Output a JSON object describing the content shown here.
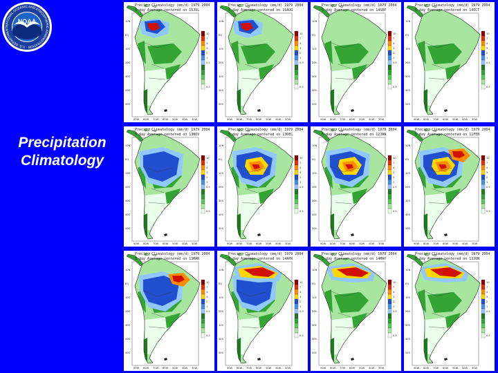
{
  "slide": {
    "title_line1": "Precipitation",
    "title_line2": "Climatology"
  },
  "logo": {
    "name": "noaa-logo",
    "text": "NOAA",
    "ring_text": "NATIONAL OCEANIC AND ATMOSPHERIC ADMINISTRATION · U.S. DEPARTMENT OF COMMERCE",
    "colors": {
      "outer": "#ffffff",
      "ring": "#1b3f9e",
      "sky": "#1e63c9",
      "sea": "#0b2a7a",
      "gull": "#ffffff"
    }
  },
  "panel_header": "Precip. Climatology (mm/d) 1979 2004",
  "panels": [
    {
      "row": 1,
      "col": 1,
      "subtitle": "5 day Average centered on 15JUL",
      "wet": [
        "nw"
      ]
    },
    {
      "row": 1,
      "col": 2,
      "subtitle": "5 day Average centered on 15AUG",
      "wet": [
        "nw"
      ]
    },
    {
      "row": 1,
      "col": 3,
      "subtitle": "5 day Average centered on 14SEP",
      "wet": []
    },
    {
      "row": 1,
      "col": 4,
      "subtitle": "5 day Average centered on 14OCT",
      "wet": []
    },
    {
      "row": 2,
      "col": 1,
      "subtitle": "5 day Average centered on 13NOV",
      "wet": [
        "amazon-blue"
      ]
    },
    {
      "row": 2,
      "col": 2,
      "subtitle": "5 day Average centered on 13DEC",
      "wet": [
        "amazon-blue",
        "center"
      ]
    },
    {
      "row": 2,
      "col": 3,
      "subtitle": "5 day Average centered on 12JAN",
      "wet": [
        "amazon-blue",
        "center"
      ]
    },
    {
      "row": 2,
      "col": 4,
      "subtitle": "5 day Average centered on 11FEB",
      "wet": [
        "amazon-blue",
        "center",
        "ne"
      ]
    },
    {
      "row": 3,
      "col": 1,
      "subtitle": "5 day Average centered on 13MAR",
      "wet": [
        "amazon-blue",
        "ne"
      ]
    },
    {
      "row": 3,
      "col": 2,
      "subtitle": "5 day Average centered on 14APR",
      "wet": [
        "amazon-blue",
        "north"
      ]
    },
    {
      "row": 3,
      "col": 3,
      "subtitle": "5 day Average centered on 14MAY",
      "wet": [
        "north"
      ]
    },
    {
      "row": 3,
      "col": 4,
      "subtitle": "5 day Average centered on 13JUN",
      "wet": [
        "north"
      ]
    }
  ],
  "colorbar": {
    "levels": [
      "10",
      "7",
      "4",
      "3",
      "2",
      "1",
      "0.5",
      "",
      "",
      "",
      "",
      "0.5"
    ],
    "colors": [
      "#8b0000",
      "#e03000",
      "#ff8c00",
      "#ffd700",
      "#2050d0",
      "#4a90e0",
      "#90c8ff",
      "#1f7a1f",
      "#34a534",
      "#5cc85c",
      "#a8e6a0",
      "#eaffea"
    ]
  },
  "map_colors": {
    "dry": "#eaffea",
    "light_green": "#a8e6a0",
    "green": "#34a534",
    "dark_green": "#1f7a1f",
    "light_blue": "#90c8ff",
    "blue": "#2050d0",
    "yellow": "#ffd700",
    "orange": "#ff8c00",
    "red": "#d01000"
  },
  "axis_labels": {
    "lat": [
      "10N",
      "EQ",
      "10S",
      "20S",
      "30S",
      "40S",
      "50S"
    ],
    "lon": [
      "90W",
      "80W",
      "70W",
      "60W",
      "50W",
      "40W",
      "30W"
    ]
  }
}
